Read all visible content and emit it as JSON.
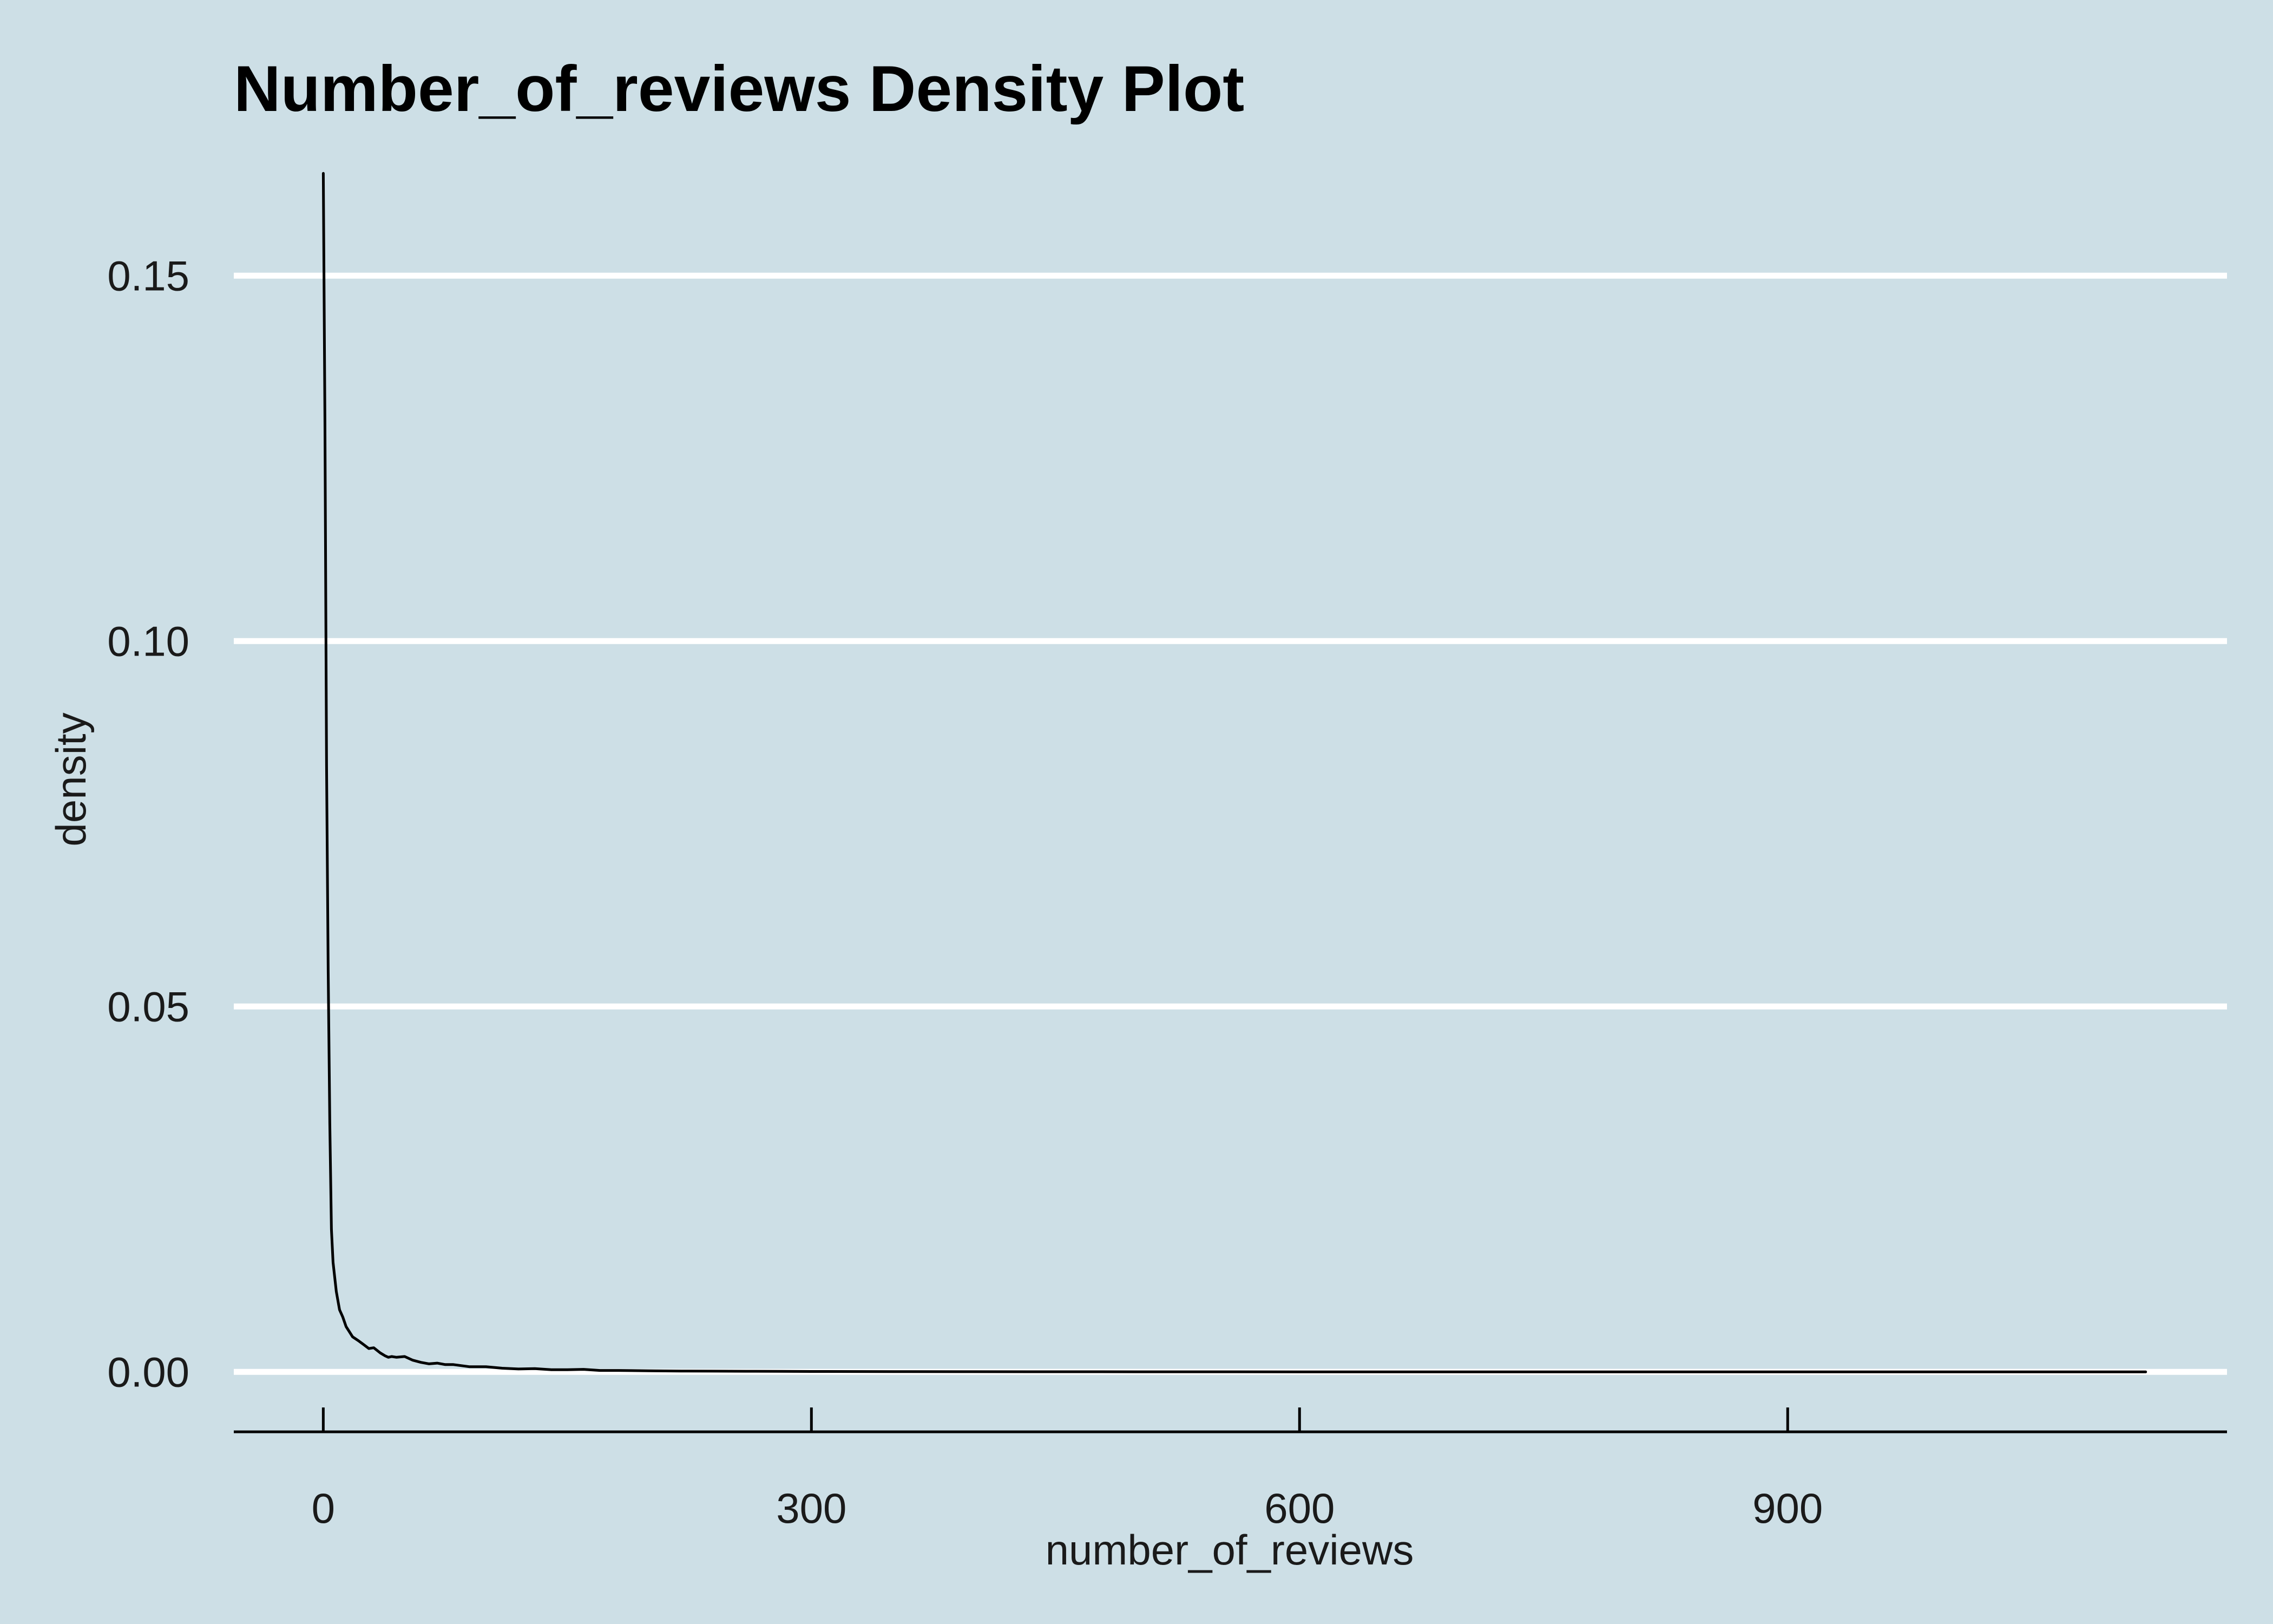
{
  "chart_data": {
    "type": "line",
    "title": "Number_of_reviews Density Plot",
    "xlabel": "number_of_reviews",
    "ylabel": "density",
    "xlim": [
      -55,
      1170
    ],
    "ylim": [
      -0.0082,
      0.1655
    ],
    "x_ticks": [
      0,
      300,
      600,
      900
    ],
    "x_tick_labels": [
      "0",
      "300",
      "600",
      "900"
    ],
    "y_ticks": [
      0,
      0.05,
      0.1,
      0.15
    ],
    "y_tick_labels": [
      "0.00",
      "0.05",
      "0.10",
      "0.15"
    ],
    "grid": "horizontal major gridlines",
    "legend": "none",
    "series": [
      {
        "x": [
          0,
          1,
          2,
          3,
          4,
          5,
          6,
          8,
          10,
          12,
          14,
          16,
          18,
          20,
          22,
          25,
          28,
          31,
          35,
          38,
          40,
          42,
          45,
          50,
          55,
          60,
          65,
          70,
          75,
          80,
          90,
          100,
          110,
          120,
          130,
          140,
          150,
          160,
          170,
          180,
          190,
          200,
          220,
          240,
          260,
          280,
          300,
          330,
          360,
          400,
          450,
          500,
          600,
          700,
          800,
          900,
          1000,
          1120
        ],
        "y": [
          0.164,
          0.13,
          0.083,
          0.055,
          0.034,
          0.0195,
          0.015,
          0.011,
          0.0085,
          0.0075,
          0.0062,
          0.0055,
          0.0048,
          0.0045,
          0.0042,
          0.0037,
          0.0032,
          0.0033,
          0.0026,
          0.0022,
          0.002,
          0.0021,
          0.002,
          0.0021,
          0.0016,
          0.0013,
          0.0011,
          0.0012,
          0.001,
          0.001,
          0.0007,
          0.0007,
          0.0005,
          0.0004,
          0.00045,
          0.0003,
          0.0003,
          0.00035,
          0.0002,
          0.0002,
          0.00018,
          0.00015,
          0.00012,
          0.0001,
          9e-05,
          8e-05,
          6e-05,
          5e-05,
          4e-05,
          3e-05,
          2e-05,
          1.5e-05,
          1e-05,
          8e-06,
          5e-06,
          4e-06,
          3e-06,
          2e-06
        ]
      }
    ],
    "colors": {
      "background": "#cddfe6",
      "gridline": "#ffffff",
      "line": "#000000",
      "axis": "#000000"
    }
  }
}
